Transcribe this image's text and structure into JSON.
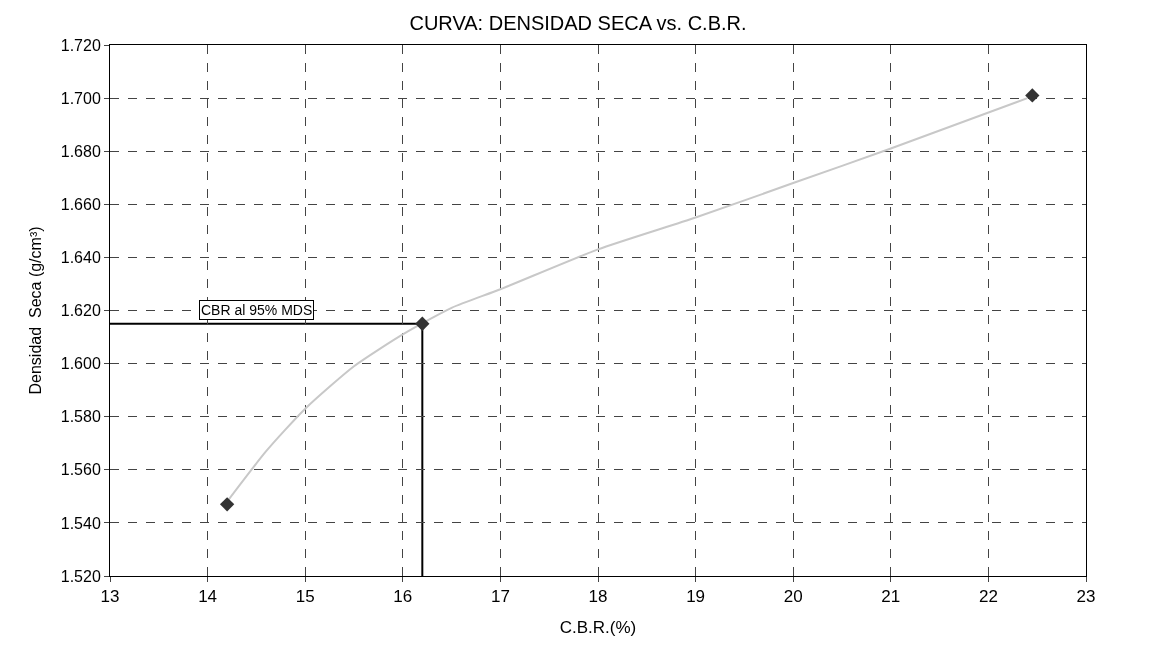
{
  "chart_data": {
    "type": "scatter",
    "title": "CURVA: DENSIDAD SECA vs. C.B.R.",
    "xlabel": "C.B.R.(%)",
    "ylabel": "Densidad  Seca (g/cm³)",
    "series": [
      {
        "type": "line",
        "color": "#c8c8c8",
        "x": [
          14.2,
          14.6,
          15,
          15.5,
          16,
          16.5,
          17,
          18,
          19,
          20,
          21,
          22.4
        ],
        "values": [
          1.548,
          1.567,
          1.583,
          1.599,
          1.611,
          1.621,
          1.628,
          1.643,
          1.655,
          1.668,
          1.681,
          1.7
        ],
        "marker": "none"
      },
      {
        "color": "#333333",
        "x": [
          14.2,
          16.2,
          22.45
        ],
        "values": [
          1.547,
          1.615,
          1.701
        ],
        "marker": "diamond"
      }
    ],
    "ref_lines": [
      {
        "axis": "y",
        "value": 1.615,
        "label": "CBR al 95% MDS",
        "color": "#000000"
      },
      {
        "axis": "x",
        "value": 16.2,
        "color": "#000000"
      }
    ],
    "xlim": [
      13,
      23
    ],
    "xticks": [
      13,
      14,
      15,
      16,
      17,
      18,
      19,
      20,
      21,
      22,
      23
    ],
    "ylim": [
      1.52,
      1.72
    ],
    "yticks": [
      {
        "value": 1.52,
        "label": "1.520"
      },
      {
        "value": 1.54,
        "label": "1.540"
      },
      {
        "value": 1.56,
        "label": "1.560"
      },
      {
        "value": 1.58,
        "label": "1.580"
      },
      {
        "value": 1.6,
        "label": "1.600"
      },
      {
        "value": 1.62,
        "label": "1.620"
      },
      {
        "value": 1.64,
        "label": "1.640"
      },
      {
        "value": 1.66,
        "label": "1.660"
      },
      {
        "value": 1.68,
        "label": "1.680"
      },
      {
        "value": 1.7,
        "label": "1.700"
      },
      {
        "value": 1.72,
        "label": "1.720"
      }
    ],
    "grid": true
  }
}
